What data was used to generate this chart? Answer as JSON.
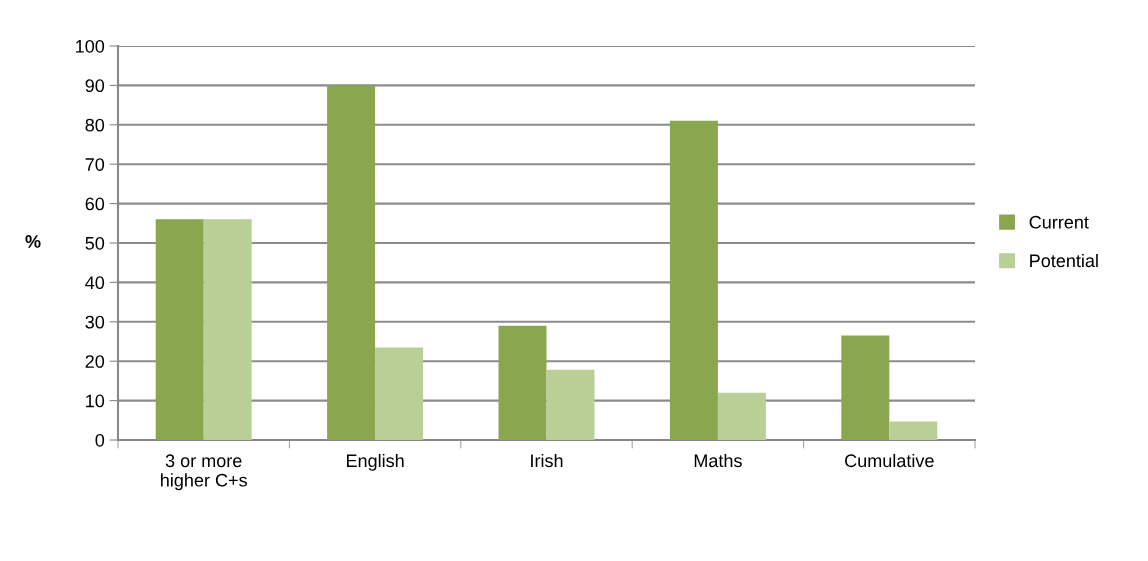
{
  "chart_data": {
    "type": "bar",
    "ylabel": "%",
    "categories": [
      "3 or more\nhigher C+s",
      "English",
      "Irish",
      "Maths",
      "Cumulative"
    ],
    "series": [
      {
        "name": "Current",
        "color": "#8aa64e",
        "values": [
          56,
          90,
          29,
          81,
          26.5
        ]
      },
      {
        "name": "Potential",
        "color": "#b9cf95",
        "values": [
          56,
          23.5,
          17.8,
          12,
          4.7
        ]
      }
    ],
    "ylim": [
      0,
      100
    ],
    "yticks": [
      0,
      10,
      20,
      30,
      40,
      50,
      60,
      70,
      80,
      90,
      100
    ],
    "grid": "y",
    "legend": "right"
  }
}
